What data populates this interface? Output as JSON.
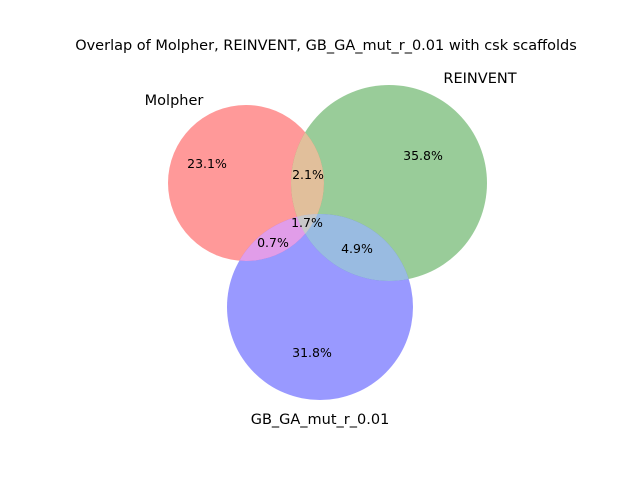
{
  "title": "Overlap of Molpher, REINVENT, GB_GA_mut_r_0.01 with csk scaffolds",
  "chart_data": {
    "type": "venn3",
    "sets": [
      {
        "name": "Molpher",
        "color": "#ff0000"
      },
      {
        "name": "REINVENT",
        "color": "#008000"
      },
      {
        "name": "GB_GA_mut_r_0.01",
        "color": "#0000ff"
      }
    ],
    "region_colors": {
      "molpher_reinvent": "#e1bf9b",
      "molpher_gbga": "#e19de9",
      "reinvent_gbga": "#99bbe1",
      "all": "#c8c8c8"
    },
    "regions": {
      "molpher_only": "23.1%",
      "reinvent_only": "35.8%",
      "gbga_only": "31.8%",
      "molpher_reinvent": "2.1%",
      "molpher_gbga": "0.7%",
      "reinvent_gbga": "4.9%",
      "all": "1.7%"
    }
  }
}
